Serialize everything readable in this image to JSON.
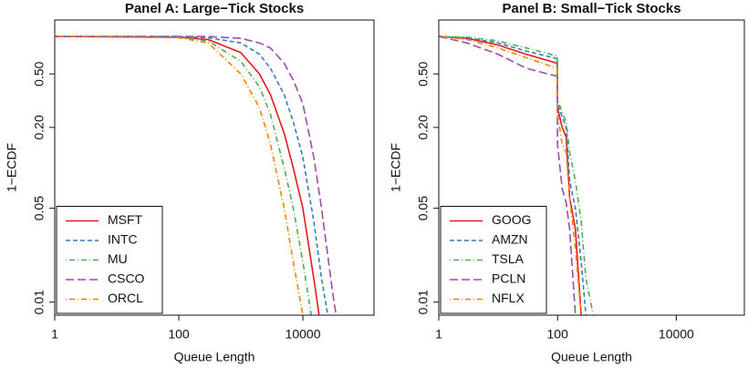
{
  "chart_data": [
    {
      "type": "line",
      "title": "Panel A: Large−Tick Stocks",
      "x_label": "Queue Length",
      "y_label": "1−ECDF",
      "x_scale": "log",
      "y_scale": "log",
      "legend": "bottom left",
      "xlim": [
        1,
        140000
      ],
      "ylim": [
        0.008,
        1.26
      ],
      "xticks": [
        1,
        100,
        10000
      ],
      "yticks": [
        0.01,
        0.05,
        {
          "value": 0.2,
          "label": "0.20"
        },
        {
          "value": 0.5,
          "label": "0.50"
        }
      ],
      "x": [
        1,
        100,
        300,
        1000,
        2000,
        3000,
        5000,
        7000,
        10000,
        15000,
        20000,
        30000,
        40000
      ],
      "series": [
        {
          "name": "MSFT",
          "color": "#e41a1c",
          "dash": "solid",
          "values": [
            0.95,
            0.94,
            0.9,
            0.72,
            0.5,
            0.35,
            0.18,
            0.1,
            0.05,
            0.015,
            0.006,
            null,
            null
          ]
        },
        {
          "name": "INTC",
          "color": "#377eb8",
          "dash": "dashed",
          "values": [
            0.95,
            0.95,
            0.93,
            0.85,
            0.7,
            0.55,
            0.35,
            0.22,
            0.12,
            0.04,
            0.015,
            0.005,
            null
          ]
        },
        {
          "name": "MU",
          "color": "#4daf4a",
          "dash": "dotdash",
          "values": [
            0.95,
            0.94,
            0.88,
            0.62,
            0.4,
            0.25,
            0.1,
            0.05,
            0.02,
            0.006,
            null,
            null,
            null
          ]
        },
        {
          "name": "CSCO",
          "color": "#984ea3",
          "dash": "longdash",
          "values": [
            0.95,
            0.95,
            0.95,
            0.92,
            0.85,
            0.78,
            0.6,
            0.45,
            0.3,
            0.12,
            0.05,
            0.012,
            0.005
          ]
        },
        {
          "name": "ORCL",
          "color": "#ff7f00",
          "dash": "dotdash",
          "values": [
            0.95,
            0.93,
            0.85,
            0.5,
            0.28,
            0.15,
            0.05,
            0.02,
            0.008,
            null,
            null,
            null,
            null
          ]
        }
      ]
    },
    {
      "type": "line",
      "title": "Panel B: Small−Tick Stocks",
      "x_label": "Queue Length",
      "y_label": "1−ECDF",
      "x_scale": "log",
      "y_scale": "log",
      "legend": "bottom left",
      "xlim": [
        1,
        140000
      ],
      "ylim": [
        0.008,
        1.26
      ],
      "xticks": [
        1,
        100,
        10000
      ],
      "yticks": [
        0.01,
        0.05,
        {
          "value": 0.2,
          "label": "0.20"
        },
        {
          "value": 0.5,
          "label": "0.50"
        }
      ],
      "x": [
        1,
        3,
        10,
        30,
        99,
        100,
        120,
        140,
        160,
        200,
        250,
        300,
        400
      ],
      "series": [
        {
          "name": "GOOG",
          "color": "#e41a1c",
          "dash": "solid",
          "values": [
            0.95,
            0.92,
            0.82,
            0.7,
            0.6,
            0.28,
            0.2,
            0.17,
            0.06,
            0.035,
            0.008,
            null,
            null
          ]
        },
        {
          "name": "AMZN",
          "color": "#377eb8",
          "dash": "dashed",
          "values": [
            0.95,
            0.93,
            0.85,
            0.74,
            0.65,
            0.3,
            0.24,
            0.2,
            0.08,
            0.05,
            0.02,
            0.008,
            null
          ]
        },
        {
          "name": "TSLA",
          "color": "#4daf4a",
          "dash": "dotdash",
          "values": [
            0.95,
            0.94,
            0.88,
            0.78,
            0.68,
            0.32,
            0.26,
            0.22,
            0.13,
            0.08,
            0.04,
            0.015,
            0.008
          ]
        },
        {
          "name": "PCLN",
          "color": "#984ea3",
          "dash": "longdash",
          "values": [
            0.95,
            0.85,
            0.7,
            0.55,
            0.48,
            0.15,
            0.07,
            0.055,
            0.035,
            0.008,
            null,
            null,
            null
          ]
        },
        {
          "name": "NFLX",
          "color": "#ff7f00",
          "dash": "dotdash",
          "values": [
            0.95,
            0.9,
            0.78,
            0.66,
            0.55,
            0.25,
            0.15,
            0.13,
            0.06,
            0.025,
            0.008,
            null,
            null
          ]
        }
      ]
    }
  ]
}
